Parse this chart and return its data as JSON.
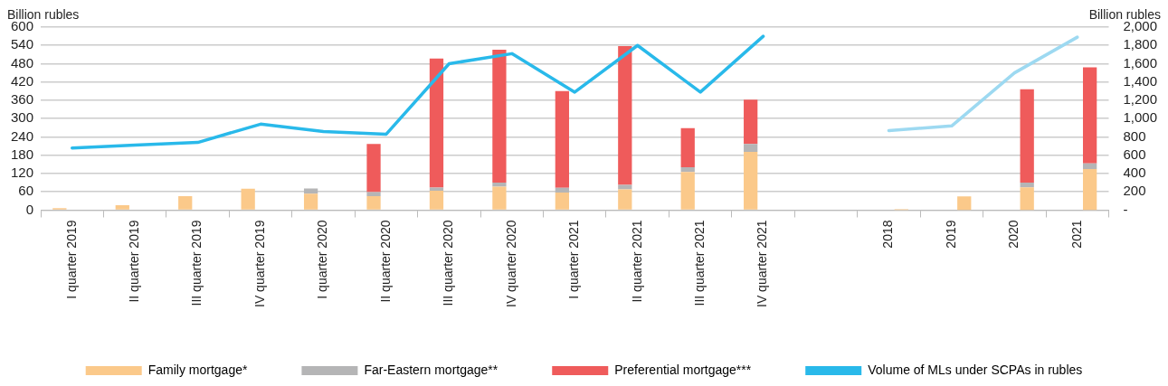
{
  "chart_data": {
    "type": "bar",
    "stacked": true,
    "ylabel": "Billion rubles",
    "y2label": "Billion rubles",
    "categories": [
      "I quarter 2019",
      "II quarter 2019",
      "III quarter 2019",
      "IV quarter 2019",
      "I quarter 2020",
      "II quarter 2020",
      "III quarter 2020",
      "IV quarter 2020",
      "I quarter 2021",
      "II quarter 2021",
      "III quarter 2021",
      "IV quarter 2021",
      null,
      "2018",
      "2019",
      "2020",
      "2021"
    ],
    "series": [
      {
        "name": "Family mortgage*",
        "color": "#fbc98a",
        "values": [
          7,
          16,
          46,
          70,
          54,
          46,
          64,
          77,
          58,
          68,
          125,
          191,
          null,
          null,
          null,
          null,
          null
        ]
      },
      {
        "name": "Far-Eastern mortgage**",
        "color": "#b5b5b6",
        "values": [
          null,
          null,
          null,
          null,
          17,
          13,
          10,
          13,
          15,
          15,
          16,
          26,
          null,
          null,
          null,
          null,
          null
        ]
      },
      {
        "name": "Preferential mortgage***",
        "color": "#ef5b5b",
        "values": [
          null,
          null,
          null,
          null,
          null,
          158,
          423,
          436,
          317,
          455,
          128,
          145,
          null,
          null,
          null,
          null,
          null
        ]
      },
      {
        "color": "#fbc98a",
        "axis": "y2",
        "values": [
          null,
          null,
          null,
          null,
          null,
          null,
          null,
          null,
          null,
          null,
          null,
          null,
          null,
          10,
          150,
          250,
          450
        ]
      },
      {
        "color": "#b5b5b6",
        "axis": "y2",
        "values": [
          null,
          null,
          null,
          null,
          null,
          null,
          null,
          null,
          null,
          null,
          null,
          null,
          null,
          null,
          null,
          50,
          60
        ]
      },
      {
        "color": "#ef5b5b",
        "axis": "y2",
        "values": [
          null,
          null,
          null,
          null,
          null,
          null,
          null,
          null,
          null,
          null,
          null,
          null,
          null,
          null,
          null,
          1020,
          1050
        ]
      },
      {
        "name": "Volume of MLs under SCPAs in rubles",
        "type": "line",
        "axis": "y2",
        "color": "#29b9ea",
        "values": [
          680,
          710,
          740,
          940,
          860,
          830,
          1600,
          1710,
          1290,
          1800,
          1290,
          1900,
          null,
          null,
          null,
          null,
          null
        ]
      },
      {
        "type": "line",
        "axis": "y2",
        "color": "#9dd9f1",
        "values": [
          null,
          null,
          null,
          null,
          null,
          null,
          null,
          null,
          null,
          null,
          null,
          null,
          null,
          870,
          920,
          1500,
          1890
        ]
      }
    ],
    "ylim": [
      0,
      600
    ],
    "yticks": [
      0,
      60,
      120,
      180,
      240,
      300,
      360,
      420,
      480,
      540,
      600
    ],
    "y2lim": [
      0,
      2000
    ],
    "y2ticks": [
      {
        "value": 0,
        "label": "-"
      },
      200,
      400,
      600,
      800,
      {
        "value": 1000,
        "label": "1,000"
      },
      {
        "value": 1200,
        "label": "1,200"
      },
      {
        "value": 1400,
        "label": "1,400"
      },
      {
        "value": 1600,
        "label": "1,600"
      },
      {
        "value": 1800,
        "label": "1,800"
      },
      {
        "value": 2000,
        "label": "2,000"
      }
    ],
    "grid": "y",
    "legend": "bottom",
    "marker": "none",
    "line_style": "solid"
  }
}
